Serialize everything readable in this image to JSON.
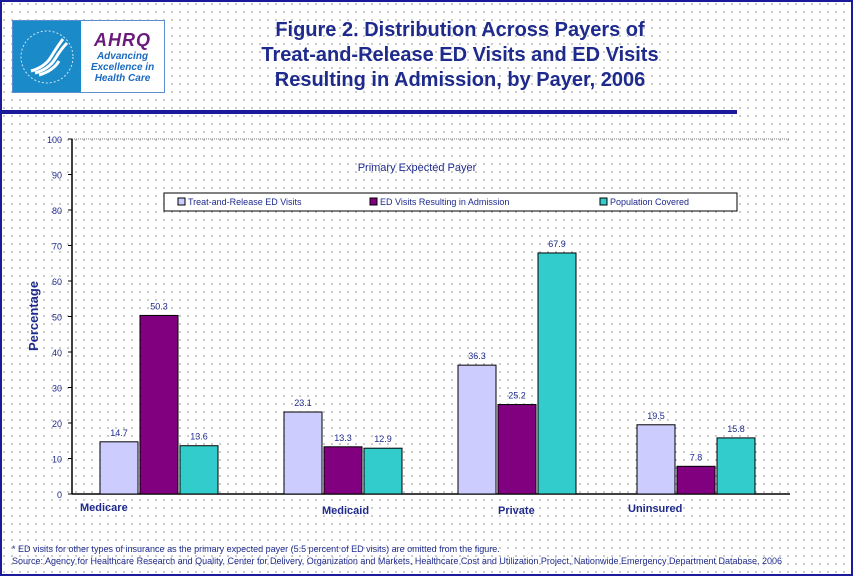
{
  "logo": {
    "brand": "AHRQ",
    "tagline": "Advancing Excellence in Health Care"
  },
  "title_lines": [
    "Figure 2. Distribution Across Payers of",
    "Treat-and-Release ED Visits and ED Visits",
    "Resulting in Admission, by Payer, 2006"
  ],
  "chart_data": {
    "type": "bar",
    "title": "Figure 2. Distribution Across Payers of Treat-and-Release ED Visits and ED Visits Resulting in Admission, by Payer, 2006",
    "subtitle": "Primary Expected Payer",
    "ylabel": "Percentage",
    "xlabel": "",
    "ylim": [
      0,
      100
    ],
    "yticks": [
      0,
      10,
      20,
      30,
      40,
      50,
      60,
      70,
      80,
      90,
      100
    ],
    "categories": [
      "Medicare",
      "Medicaid",
      "Private",
      "Uninsured"
    ],
    "series": [
      {
        "name": "Treat-and-Release ED Visits",
        "color": "#ccccff",
        "values": [
          14.7,
          23.1,
          36.3,
          19.5
        ]
      },
      {
        "name": "ED Visits Resulting in Admission",
        "color": "#800080",
        "values": [
          50.3,
          13.3,
          25.2,
          7.8
        ]
      },
      {
        "name": "Population Covered",
        "color": "#33cccc",
        "values": [
          13.6,
          12.9,
          67.9,
          15.8
        ]
      }
    ],
    "legend": "top",
    "grid": false
  },
  "footnote": "* ED visits for other types of insurance as the primary expected payer (5.5 percent of ED visits) are omitted from the figure.",
  "source": "Source: Agency for Healthcare Research and Quality, Center for Delivery, Organization and Markets, Healthcare Cost and Utilization Project, Nationwide Emergency Department Database, 2006"
}
